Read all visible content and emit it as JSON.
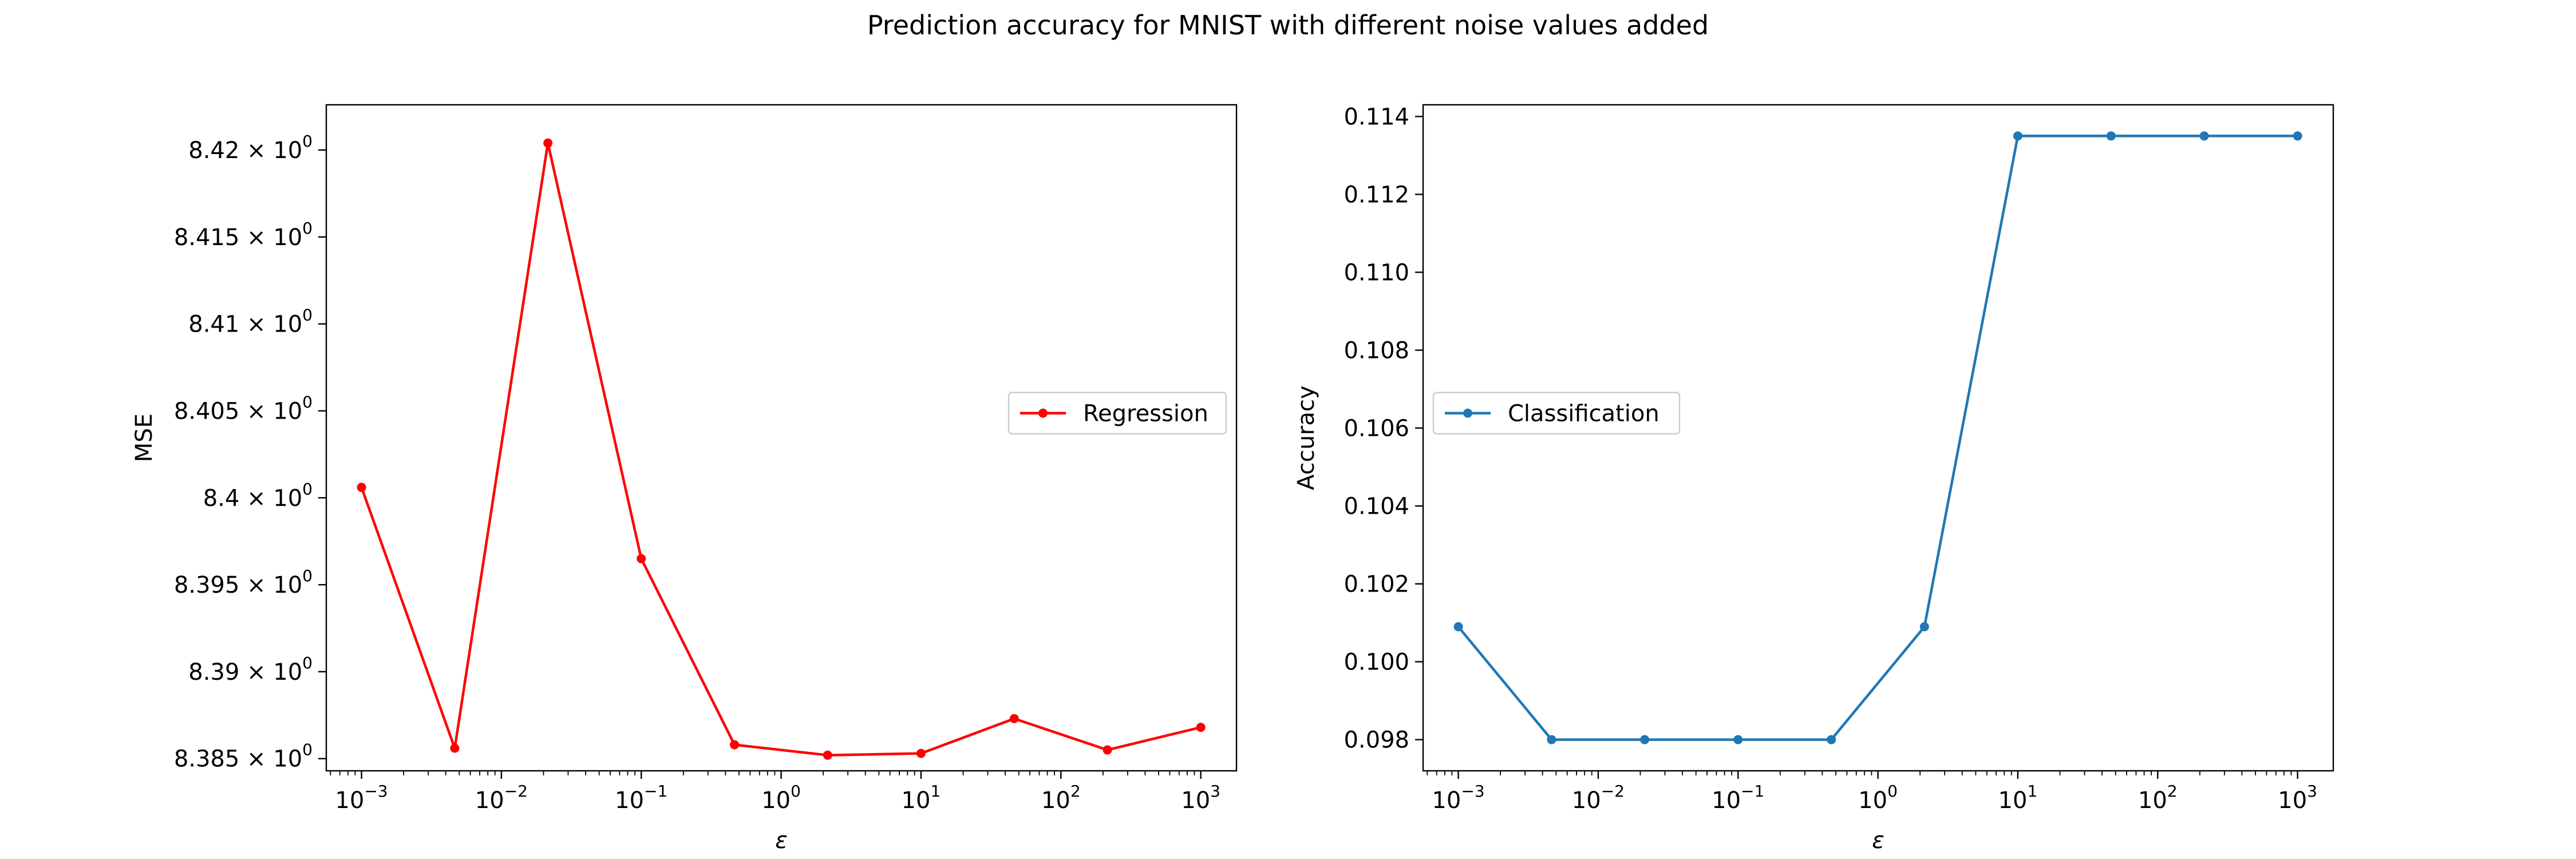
{
  "figure": {
    "title": "Prediction accuracy for MNIST with different noise values added"
  },
  "chart_data": [
    {
      "type": "line",
      "xscale": "log",
      "xlim": [
        0.00056,
        1800
      ],
      "ylim": [
        8.3843,
        8.4226
      ],
      "grid": false,
      "xlabel": "ε",
      "ylabel": "MSE",
      "xticks": [
        {
          "value": 0.001,
          "base": "10",
          "exp": "−3"
        },
        {
          "value": 0.01,
          "base": "10",
          "exp": "−2"
        },
        {
          "value": 0.1,
          "base": "10",
          "exp": "−1"
        },
        {
          "value": 1,
          "base": "10",
          "exp": "0"
        },
        {
          "value": 10,
          "base": "10",
          "exp": "1"
        },
        {
          "value": 100,
          "base": "10",
          "exp": "2"
        },
        {
          "value": 1000,
          "base": "10",
          "exp": "3"
        }
      ],
      "yticks": [
        {
          "value": 8.385,
          "mant": "8.385",
          "exp": "0"
        },
        {
          "value": 8.39,
          "mant": "8.39",
          "exp": "0"
        },
        {
          "value": 8.395,
          "mant": "8.395",
          "exp": "0"
        },
        {
          "value": 8.4,
          "mant": "8.4",
          "exp": "0"
        },
        {
          "value": 8.405,
          "mant": "8.405",
          "exp": "0"
        },
        {
          "value": 8.41,
          "mant": "8.41",
          "exp": "0"
        },
        {
          "value": 8.415,
          "mant": "8.415",
          "exp": "0"
        },
        {
          "value": 8.42,
          "mant": "8.42",
          "exp": "0"
        }
      ],
      "legend_position": "center-right",
      "series": [
        {
          "name": "Regression",
          "color": "#ff0000",
          "x": [
            0.001,
            0.00464,
            0.0215,
            0.1,
            0.464,
            2.15,
            10,
            46.4,
            215,
            1000
          ],
          "y": [
            8.4006,
            8.3856,
            8.4204,
            8.3965,
            8.3858,
            8.3852,
            8.3853,
            8.3873,
            8.3855,
            8.3868
          ]
        }
      ]
    },
    {
      "type": "line",
      "xscale": "log",
      "xlim": [
        0.00056,
        1800
      ],
      "ylim": [
        0.0972,
        0.1143
      ],
      "grid": false,
      "xlabel": "ε",
      "ylabel": "Accuracy",
      "xticks": [
        {
          "value": 0.001,
          "base": "10",
          "exp": "−3"
        },
        {
          "value": 0.01,
          "base": "10",
          "exp": "−2"
        },
        {
          "value": 0.1,
          "base": "10",
          "exp": "−1"
        },
        {
          "value": 1,
          "base": "10",
          "exp": "0"
        },
        {
          "value": 10,
          "base": "10",
          "exp": "1"
        },
        {
          "value": 100,
          "base": "10",
          "exp": "2"
        },
        {
          "value": 1000,
          "base": "10",
          "exp": "3"
        }
      ],
      "yticks": [
        {
          "value": 0.098,
          "label": "0.098"
        },
        {
          "value": 0.1,
          "label": "0.100"
        },
        {
          "value": 0.102,
          "label": "0.102"
        },
        {
          "value": 0.104,
          "label": "0.104"
        },
        {
          "value": 0.106,
          "label": "0.106"
        },
        {
          "value": 0.108,
          "label": "0.108"
        },
        {
          "value": 0.11,
          "label": "0.110"
        },
        {
          "value": 0.112,
          "label": "0.112"
        },
        {
          "value": 0.114,
          "label": "0.114"
        }
      ],
      "legend_position": "center-left",
      "series": [
        {
          "name": "Classification",
          "color": "#1f77b4",
          "x": [
            0.001,
            0.00464,
            0.0215,
            0.1,
            0.464,
            2.15,
            10,
            46.4,
            215,
            1000
          ],
          "y": [
            0.1009,
            0.098,
            0.098,
            0.098,
            0.098,
            0.1009,
            0.1135,
            0.1135,
            0.1135,
            0.1135
          ]
        }
      ]
    }
  ]
}
